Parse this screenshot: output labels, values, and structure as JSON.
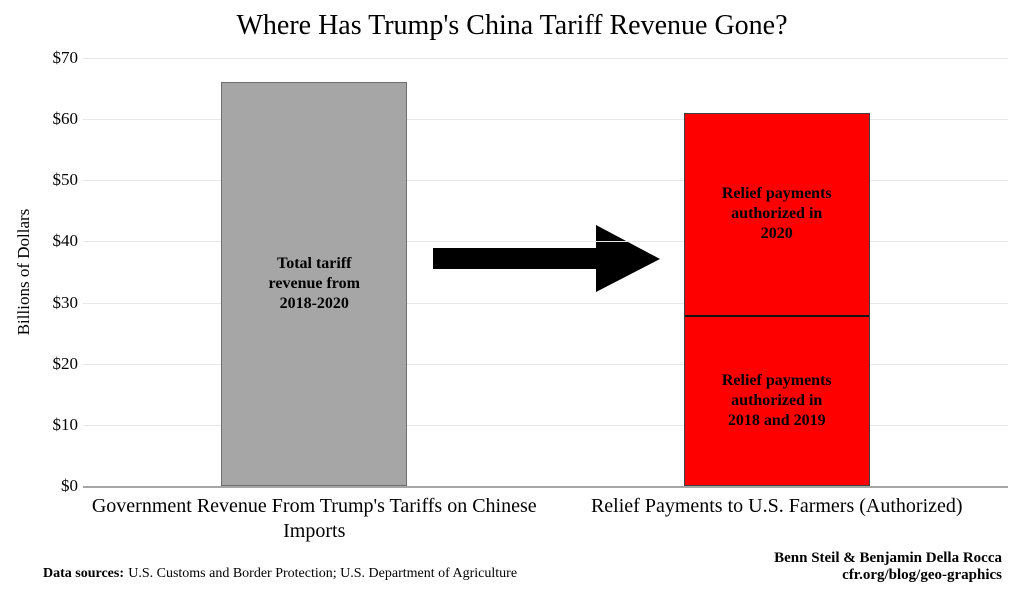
{
  "title": "Where Has Trump's China Tariff Revenue Gone?",
  "chart_data": {
    "type": "bar",
    "stacked": true,
    "title": "Where Has Trump's China Tariff Revenue Gone?",
    "ylabel": "Billions of Dollars",
    "ylim": [
      0,
      70
    ],
    "ytick_step": 10,
    "ytick_prefix": "$",
    "grid": true,
    "legend": "none",
    "background_color": "#ffffff",
    "gridline_color": "#e7e7e7",
    "axis_color": "#a6a6a6",
    "categories": [
      "Government Revenue From Trump's Tariffs on Chinese Imports",
      "Relief Payments to U.S. Farmers (Authorized)"
    ],
    "bars": [
      {
        "category": "Government Revenue From Trump's Tariffs on Chinese Imports",
        "fill": "#a6a6a6",
        "border": "#6e6e6e",
        "total": 66,
        "segments": [
          {
            "label": "Total tariff revenue from 2018-2020",
            "label_lines": [
              "Total tariff",
              "revenue from",
              "2018-2020"
            ],
            "value": 66
          }
        ]
      },
      {
        "category": "Relief Payments to U.S. Farmers (Authorized)",
        "fill": "#ff0000",
        "border": "#404040",
        "total": 61,
        "segments": [
          {
            "label": "Relief payments authorized in 2018 and 2019",
            "label_lines": [
              "Relief payments",
              "authorized in",
              "2018 and 2019"
            ],
            "value": 28
          },
          {
            "label": "Relief payments authorized in 2020",
            "label_lines": [
              "Relief payments",
              "authorized in",
              "2020"
            ],
            "value": 33
          }
        ]
      }
    ],
    "annotation": {
      "type": "arrow-right",
      "color": "#000000"
    }
  },
  "footer": {
    "sources_label": "Data sources:",
    "sources_text": "U.S. Customs and Border Protection; U.S. Department of Agriculture",
    "credits": [
      "Benn Steil & Benjamin Della Rocca",
      "cfr.org/blog/geo-graphics"
    ]
  }
}
